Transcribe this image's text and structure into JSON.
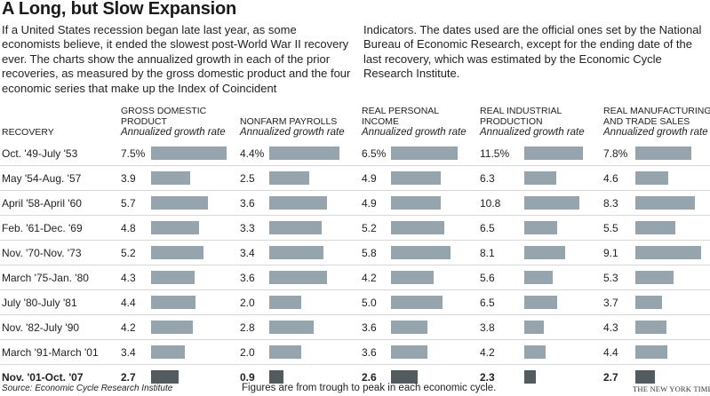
{
  "title": "A Long, but Slow Expansion",
  "intro": {
    "left": "If a United States recession began late last year, as some economists believe, it ended the slowest post-World War II recovery ever. The charts show the annualized growth in each of the prior recoveries, as measured by the gross domestic product and the four economic series that make up the Index of Coincident",
    "right": "Indicators. The dates used are the official ones set by the National Bureau of Economic Research, except for the ending date of the last recovery, which was estimated by the Economic Cycle Research Institute."
  },
  "row_header": "RECOVERY",
  "columns": [
    {
      "name_lines": [
        "GROSS DOMESTIC",
        "PRODUCT"
      ],
      "subtitle": "Annualized growth rate"
    },
    {
      "name_lines": [
        "NONFARM PAYROLLS"
      ],
      "subtitle": "Annualized growth rate"
    },
    {
      "name_lines": [
        "REAL PERSONAL",
        "INCOME"
      ],
      "subtitle": "Annualized growth rate"
    },
    {
      "name_lines": [
        "REAL INDUSTRIAL",
        "PRODUCTION"
      ],
      "subtitle": "Annualized growth rate"
    },
    {
      "name_lines": [
        "REAL MANUFACTURING",
        "AND TRADE SALES"
      ],
      "subtitle": "Annualized growth rate"
    }
  ],
  "chart_data": {
    "type": "bar",
    "categories": [
      "Oct. '49-July '53",
      "May '54-Aug. '57",
      "April '58-April '60",
      "Feb. '61-Dec. '69",
      "Nov. '70-Nov. '73",
      "March '75-Jan. '80",
      "July '80-July '81",
      "Nov. '82-July '90",
      "March '91-March '01",
      "Nov. '01-Oct. '07"
    ],
    "series": [
      {
        "name": "Gross Domestic Product",
        "values": [
          7.5,
          3.9,
          5.7,
          4.8,
          5.2,
          4.3,
          4.4,
          4.2,
          3.4,
          2.7
        ],
        "labels": [
          "7.5%",
          "3.9",
          "5.7",
          "4.8",
          "5.2",
          "4.3",
          "4.4",
          "4.2",
          "3.4",
          "2.7"
        ]
      },
      {
        "name": "Nonfarm Payrolls",
        "values": [
          4.4,
          2.5,
          3.6,
          3.3,
          3.4,
          3.6,
          2.0,
          2.8,
          2.0,
          0.9
        ],
        "labels": [
          "4.4%",
          "2.5",
          "3.6",
          "3.3",
          "3.4",
          "3.6",
          "2.0",
          "2.8",
          "2.0",
          "0.9"
        ]
      },
      {
        "name": "Real Personal Income",
        "values": [
          6.5,
          4.9,
          4.9,
          5.2,
          5.8,
          4.2,
          5.0,
          3.6,
          3.6,
          2.6
        ],
        "labels": [
          "6.5%",
          "4.9",
          "4.9",
          "5.2",
          "5.8",
          "4.2",
          "5.0",
          "3.6",
          "3.6",
          "2.6"
        ]
      },
      {
        "name": "Real Industrial Production",
        "values": [
          11.5,
          6.3,
          10.8,
          6.5,
          8.1,
          5.6,
          6.5,
          3.8,
          4.2,
          2.3
        ],
        "labels": [
          "11.5%",
          "6.3",
          "10.8",
          "6.5",
          "8.1",
          "5.6",
          "6.5",
          "3.8",
          "4.2",
          "2.3"
        ]
      },
      {
        "name": "Real Manufacturing and Trade Sales",
        "values": [
          7.8,
          4.6,
          8.3,
          5.5,
          9.1,
          5.3,
          3.7,
          4.3,
          4.4,
          2.7
        ],
        "labels": [
          "7.8%",
          "4.6",
          "8.3",
          "5.5",
          "9.1",
          "5.3",
          "3.7",
          "4.3",
          "4.4",
          "2.7"
        ]
      }
    ],
    "ylabel": "Annualized growth rate",
    "highlight_category": "Nov. '01-Oct. '07",
    "colors": {
      "bar": "#96a4ad",
      "highlight_bar": "#545b5f"
    }
  },
  "footer": {
    "source": "Source: Economic Cycle Research Institute",
    "note": "Figures are from trough to peak in each economic cycle.",
    "credit": "THE NEW YORK TIMES"
  }
}
